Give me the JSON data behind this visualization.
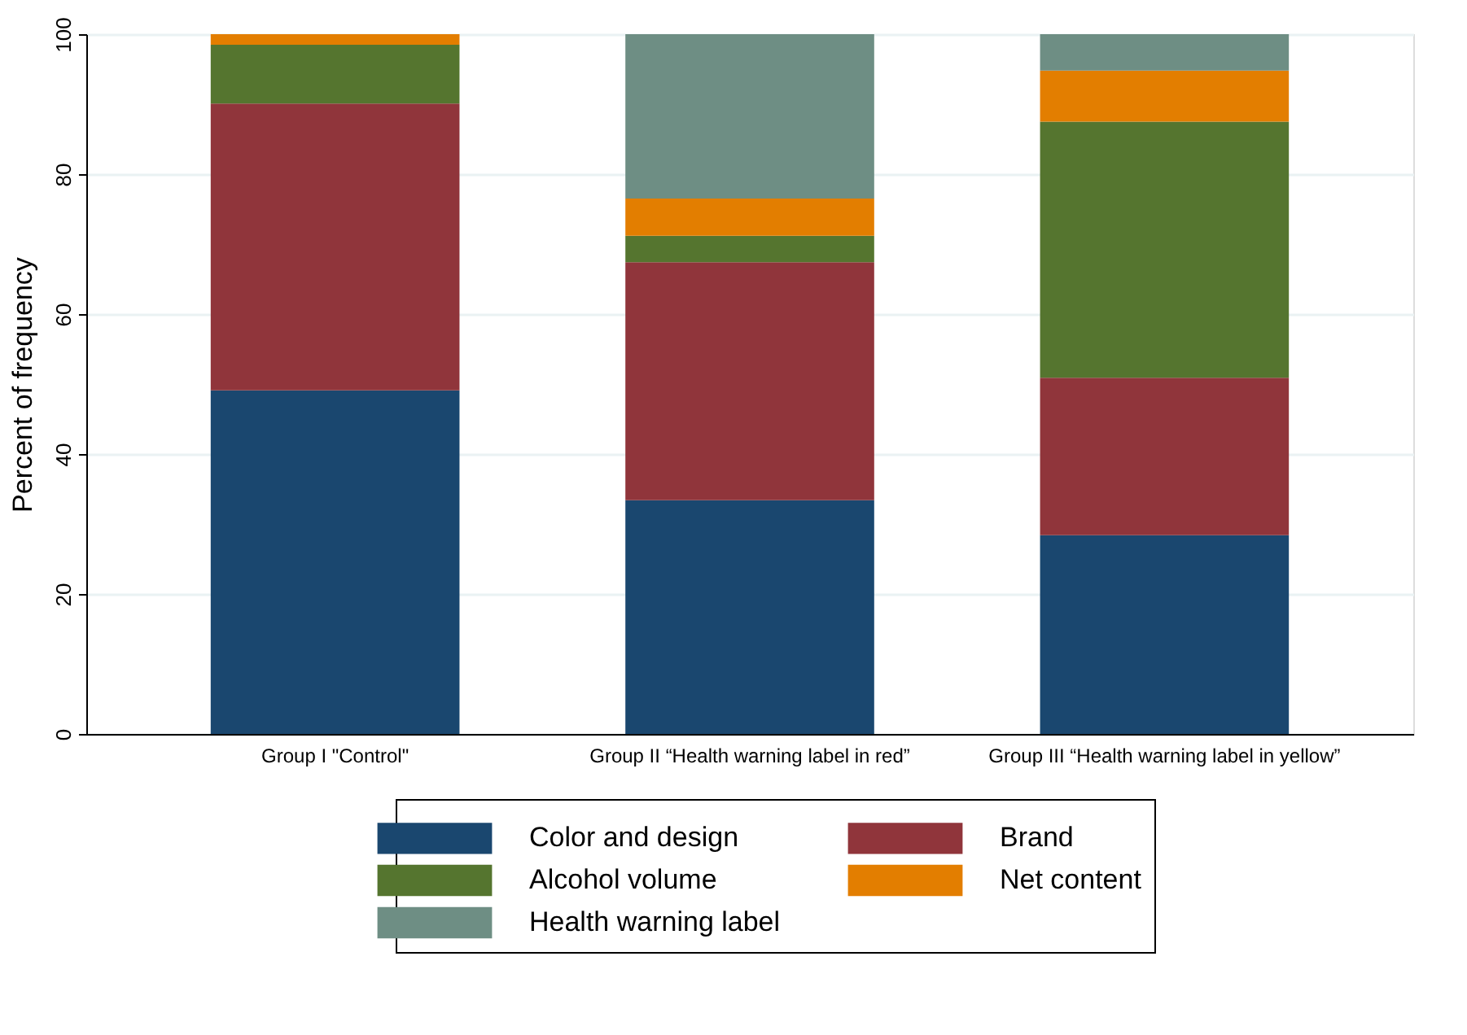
{
  "chart_data": {
    "type": "bar",
    "ylabel": "Percent of frequency",
    "categories": [
      "Group I \"Control\"",
      "Group II “Health warning label in red”",
      "Group III “Health warning label in yellow”"
    ],
    "series": [
      {
        "name": "Color and design",
        "color": "#1a476f",
        "values": [
          49.1,
          33.4,
          28.4
        ]
      },
      {
        "name": "Brand",
        "color": "#90353b",
        "values": [
          41.0,
          34.0,
          22.5
        ]
      },
      {
        "name": "Alcohol volume",
        "color": "#55752f",
        "values": [
          8.4,
          3.8,
          36.6
        ]
      },
      {
        "name": "Net content",
        "color": "#e37e00",
        "values": [
          1.5,
          5.3,
          7.3
        ]
      },
      {
        "name": "Health warning label",
        "color": "#6e8e84",
        "values": [
          0,
          23.5,
          5.2
        ]
      }
    ],
    "stacked": true,
    "ylim": [
      0,
      100
    ],
    "yticks": [
      0,
      20,
      40,
      60,
      80,
      100
    ],
    "grid": "y",
    "legend": "bottom"
  }
}
